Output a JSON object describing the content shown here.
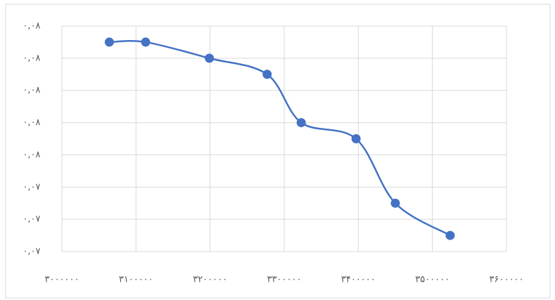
{
  "chart_data": {
    "type": "line",
    "smooth": true,
    "markers": true,
    "grid": true,
    "x": [
      3064000,
      3113000,
      3199000,
      3277000,
      3323000,
      3397000,
      3450000,
      3524000
    ],
    "values": [
      0.0785,
      0.0785,
      0.078,
      0.0775,
      0.076,
      0.0755,
      0.0735,
      0.0725
    ],
    "color": "#4472c4",
    "xlim": [
      3000000,
      3600000
    ],
    "xticks": [
      {
        "value": 3000000,
        "label": "۳۰۰۰۰۰۰"
      },
      {
        "value": 3100000,
        "label": "۳۱۰۰۰۰۰"
      },
      {
        "value": 3200000,
        "label": "۳۲۰۰۰۰۰"
      },
      {
        "value": 3300000,
        "label": "۳۳۰۰۰۰۰"
      },
      {
        "value": 3400000,
        "label": "۳۴۰۰۰۰۰"
      },
      {
        "value": 3500000,
        "label": "۳۵۰۰۰۰۰"
      },
      {
        "value": 3600000,
        "label": "۳۶۰۰۰۰۰"
      }
    ],
    "ylim": [
      0.072,
      0.079
    ],
    "yticks": [
      {
        "value": 0.072,
        "label": "۰,۰۷"
      },
      {
        "value": 0.073,
        "label": "۰,۰۷"
      },
      {
        "value": 0.074,
        "label": "۰,۰۷"
      },
      {
        "value": 0.075,
        "label": "۰,۰۸"
      },
      {
        "value": 0.076,
        "label": "۰,۰۸"
      },
      {
        "value": 0.077,
        "label": "۰,۰۸"
      },
      {
        "value": 0.078,
        "label": "۰,۰۸"
      },
      {
        "value": 0.079,
        "label": "۰,۰۸"
      }
    ]
  }
}
